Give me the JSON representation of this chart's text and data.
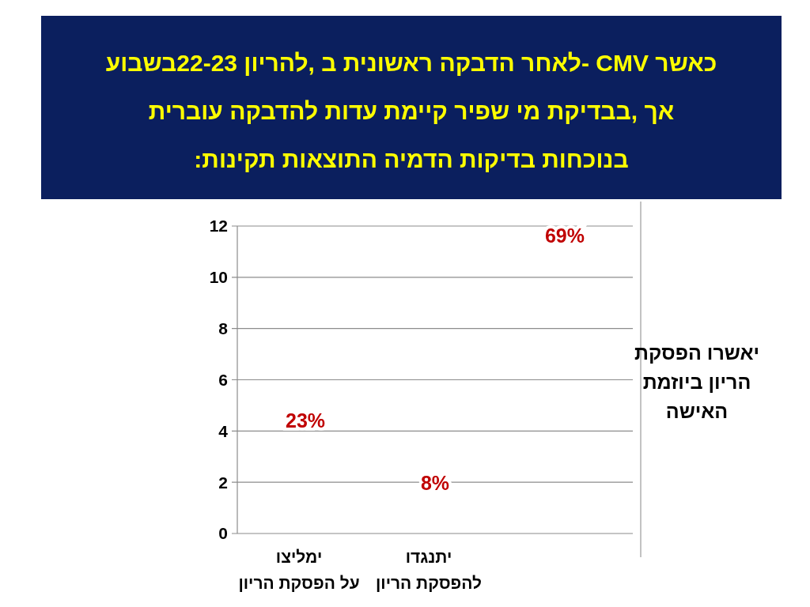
{
  "chart_data": {
    "type": "bar",
    "title": "כאשר CMV -לאחר הדבקה ראשונית ב ,להריון 22-23בשבוע\nאך ,בבדיקת מי שפיר קיימת עדות להדבקה עוברית\nבנוכחות בדיקות הדמיה התוצאות תקינות:",
    "categories": [
      "ימליצו\nעל הפסקת הריון",
      "יתנגדו\nלהפסקת הריון",
      null
    ],
    "values": [
      null,
      null,
      null
    ],
    "ylim": [
      0,
      12
    ],
    "yticks": [
      0,
      2,
      4,
      6,
      8,
      10,
      12
    ],
    "grid": "y",
    "annotations": [
      "23%",
      "8%",
      "69%",
      "יאשרו הפסקת\nהריון ביוזמת\nהאישה"
    ]
  }
}
